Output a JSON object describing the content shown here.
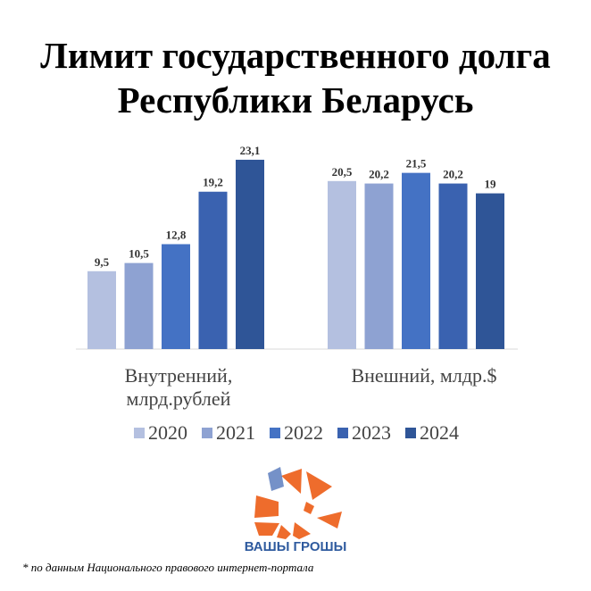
{
  "title_line1": "Лимит государственного долга",
  "title_line2": "Республики Беларусь",
  "chart_data": {
    "type": "bar",
    "title": "Лимит государственного долга Республики Беларусь",
    "categories": [
      "Внутренний, млрд.рублей",
      "Внешний, млдр.$"
    ],
    "category_lines": [
      [
        "Внутренний,",
        "млрд.рублей"
      ],
      [
        "Внешний, млдр.$"
      ]
    ],
    "series": [
      {
        "name": "2020",
        "values": [
          9.5,
          20.5
        ],
        "labels": [
          "9,5",
          "20,5"
        ],
        "color": "#b4c0e0"
      },
      {
        "name": "2021",
        "values": [
          10.5,
          20.2
        ],
        "labels": [
          "10,5",
          "20,2"
        ],
        "color": "#8ea2d2"
      },
      {
        "name": "2022",
        "values": [
          12.8,
          21.5
        ],
        "labels": [
          "12,8",
          "21,5"
        ],
        "color": "#4472c4"
      },
      {
        "name": "2023",
        "values": [
          19.2,
          20.2
        ],
        "labels": [
          "19,2",
          "20,2"
        ],
        "color": "#3a62b0"
      },
      {
        "name": "2024",
        "values": [
          23.1,
          19
        ],
        "labels": [
          "23,1",
          "19"
        ],
        "color": "#2f5597"
      }
    ],
    "ylim": [
      0,
      25
    ],
    "grid": false,
    "legend": "bottom"
  },
  "brand": "ВАШЫ ГРОШЫ",
  "footnote": "* по данным Национального правового интернет-портала",
  "accent": "#ee6c2c"
}
